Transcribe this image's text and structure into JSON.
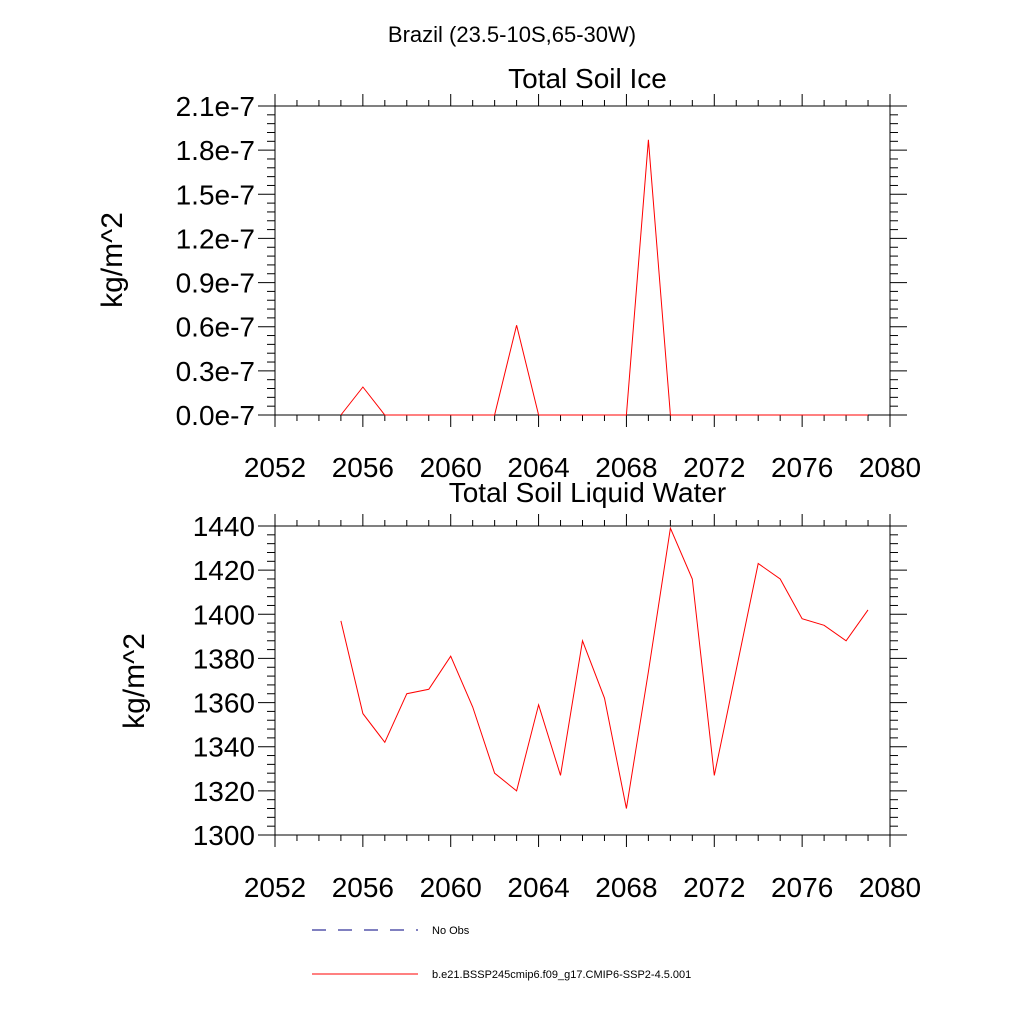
{
  "figure": {
    "region_title": "Brazil (23.5-10S,65-30W)"
  },
  "chart_data": [
    {
      "type": "line",
      "title": "Total Soil Ice",
      "xlabel": "",
      "ylabel": "kg/m^2",
      "xlim": [
        2052,
        2080
      ],
      "ylim": [
        0,
        2.1e-07
      ],
      "x_ticks": [
        2052,
        2056,
        2060,
        2064,
        2068,
        2072,
        2076,
        2080
      ],
      "x_tick_labels": [
        "2052",
        "2056",
        "2060",
        "2064",
        "2068",
        "2072",
        "2076",
        "2080"
      ],
      "y_ticks": [
        0,
        3e-08,
        6e-08,
        9e-08,
        1.2e-07,
        1.5e-07,
        1.8e-07,
        2.1e-07
      ],
      "y_tick_labels": [
        "0.0e-7",
        "0.3e-7",
        "0.6e-7",
        "0.9e-7",
        "1.2e-7",
        "1.5e-7",
        "1.8e-7",
        "2.1e-7"
      ],
      "grid": false,
      "x": [
        2055,
        2056,
        2057,
        2058,
        2059,
        2060,
        2061,
        2062,
        2063,
        2064,
        2065,
        2066,
        2067,
        2068,
        2069,
        2070,
        2071,
        2072,
        2073,
        2074,
        2075,
        2076,
        2077,
        2078,
        2079
      ],
      "series": [
        {
          "name": "b.e21.BSSP245cmip6.f09_g17.CMIP6-SSP2-4.5.001",
          "color": "#ff0000",
          "values": [
            0,
            1.9e-08,
            0,
            0,
            0,
            0,
            0,
            0,
            6.1e-08,
            0,
            0,
            0,
            0,
            0,
            1.87e-07,
            0,
            0,
            0,
            0,
            0,
            0,
            0,
            0,
            0,
            0
          ]
        }
      ]
    },
    {
      "type": "line",
      "title": "Total Soil Liquid Water",
      "xlabel": "",
      "ylabel": "kg/m^2",
      "xlim": [
        2052,
        2080
      ],
      "ylim": [
        1300,
        1440
      ],
      "x_ticks": [
        2052,
        2056,
        2060,
        2064,
        2068,
        2072,
        2076,
        2080
      ],
      "x_tick_labels": [
        "2052",
        "2056",
        "2060",
        "2064",
        "2068",
        "2072",
        "2076",
        "2080"
      ],
      "y_ticks": [
        1300,
        1320,
        1340,
        1360,
        1380,
        1400,
        1420,
        1440
      ],
      "y_tick_labels": [
        "1300",
        "1320",
        "1340",
        "1360",
        "1380",
        "1400",
        "1420",
        "1440"
      ],
      "grid": false,
      "x": [
        2055,
        2056,
        2057,
        2058,
        2059,
        2060,
        2061,
        2062,
        2063,
        2064,
        2065,
        2066,
        2067,
        2068,
        2069,
        2070,
        2071,
        2072,
        2073,
        2074,
        2075,
        2076,
        2077,
        2078,
        2079
      ],
      "series": [
        {
          "name": "b.e21.BSSP245cmip6.f09_g17.CMIP6-SSP2-4.5.001",
          "color": "#ff0000",
          "values": [
            1397,
            1355,
            1342,
            1364,
            1366,
            1381,
            1358,
            1328,
            1320,
            1359,
            1327,
            1388,
            1362,
            1312,
            1374,
            1439,
            1416,
            1327,
            1375,
            1423,
            1416,
            1398,
            1395,
            1388,
            1402
          ]
        }
      ]
    }
  ],
  "legend": [
    {
      "label": "No Obs",
      "color": "#000080",
      "style": "dashed"
    },
    {
      "label": "b.e21.BSSP245cmip6.f09_g17.CMIP6-SSP2-4.5.001",
      "color": "#ff0000",
      "style": "solid"
    }
  ]
}
